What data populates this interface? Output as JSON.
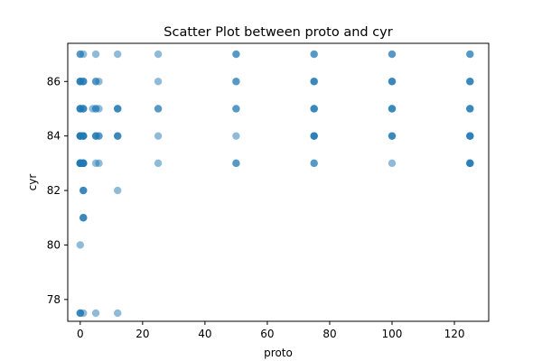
{
  "chart_data": {
    "type": "scatter",
    "title": "Scatter Plot between proto and cyr",
    "xlabel": "proto",
    "ylabel": "cyr",
    "xlim": [
      -4,
      131
    ],
    "ylim": [
      77.2,
      87.4
    ],
    "xticks": [
      0,
      20,
      40,
      60,
      80,
      100,
      120
    ],
    "yticks": [
      78,
      80,
      82,
      84,
      86
    ],
    "grid": false,
    "legend": "none",
    "color": "#1f77b4",
    "alpha": 0.5,
    "series": [
      {
        "x": [
          0,
          0,
          0,
          0,
          0,
          0,
          0,
          0,
          0,
          0,
          0,
          0,
          0,
          0,
          0,
          0,
          0,
          0,
          0,
          0,
          0,
          0,
          0,
          0,
          0,
          0,
          0,
          1,
          1,
          1,
          1,
          1,
          1,
          1,
          1,
          1,
          1,
          1,
          1,
          1,
          1,
          1,
          1,
          1,
          1,
          1,
          1,
          1,
          1,
          1,
          1,
          1,
          4,
          5,
          5,
          5,
          5,
          5,
          5,
          5,
          5,
          5,
          5,
          6,
          6,
          6,
          6,
          6,
          12,
          12,
          12,
          12,
          12,
          12,
          12,
          12,
          12,
          25,
          25,
          25,
          25,
          25,
          25,
          50,
          50,
          50,
          50,
          50,
          50,
          50,
          50,
          50,
          75,
          75,
          75,
          75,
          75,
          75,
          75,
          75,
          75,
          75,
          75,
          75,
          75,
          75,
          100,
          100,
          100,
          100,
          100,
          100,
          100,
          100,
          100,
          100,
          100,
          100,
          125,
          125,
          125,
          125,
          125,
          125,
          125,
          125,
          125,
          125,
          125,
          125,
          125,
          125,
          125,
          125
        ],
        "y": [
          87,
          86,
          86,
          85,
          85,
          84,
          84,
          84,
          83,
          83,
          83,
          80,
          77.5,
          77.5,
          86,
          85,
          84,
          83,
          84,
          83,
          85,
          86,
          87,
          83,
          84,
          83,
          77.5,
          87,
          86,
          86,
          85,
          85,
          84,
          84,
          84,
          83,
          83,
          83,
          82,
          82,
          82,
          81,
          81,
          81,
          77.5,
          84,
          83,
          83,
          86,
          85,
          84,
          83,
          85,
          87,
          86,
          86,
          85,
          85,
          84,
          84,
          84,
          83,
          77.5,
          86,
          85,
          84,
          84,
          83,
          87,
          85,
          85,
          85,
          84,
          84,
          84,
          82,
          77.5,
          87,
          86,
          85,
          85,
          84,
          83,
          87,
          87,
          86,
          86,
          85,
          85,
          84,
          83,
          83,
          87,
          87,
          86,
          86,
          86,
          85,
          85,
          85,
          84,
          84,
          84,
          84,
          83,
          83,
          87,
          87,
          86,
          86,
          86,
          85,
          85,
          85,
          84,
          84,
          84,
          83,
          87,
          87,
          86,
          86,
          86,
          85,
          85,
          85,
          84,
          84,
          84,
          84,
          83,
          83,
          83,
          83
        ]
      }
    ]
  }
}
